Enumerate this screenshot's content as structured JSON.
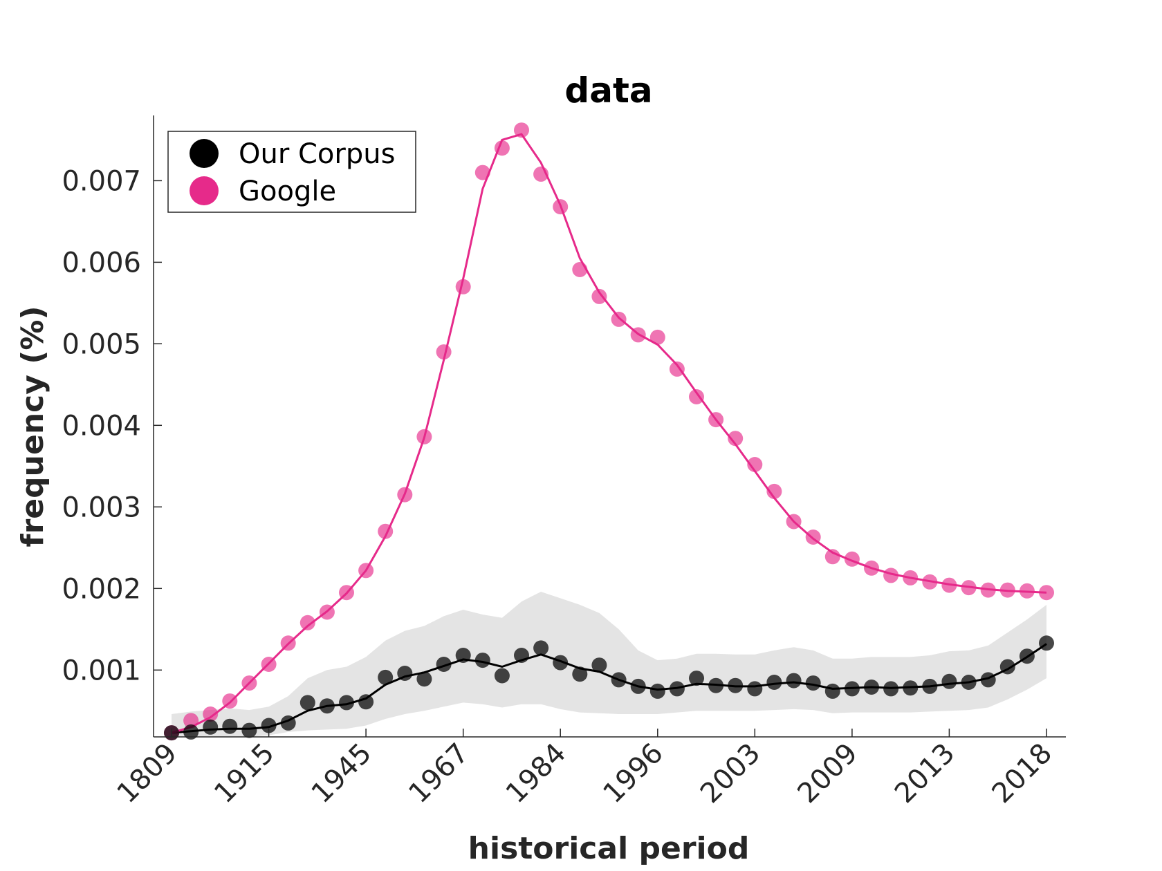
{
  "chart_data": {
    "type": "scatter",
    "title": "data",
    "xlabel": "historical period",
    "ylabel": "frequency (%)",
    "categories": [
      "1809",
      "1915",
      "1945",
      "1967",
      "1984",
      "1996",
      "2003",
      "2009",
      "2013",
      "2018"
    ],
    "ylim": [
      0.00018,
      0.0078
    ],
    "yticks": [
      0.001,
      0.002,
      0.003,
      0.004,
      0.005,
      0.006,
      0.007
    ],
    "ytick_labels": [
      "0.001",
      "0.002",
      "0.003",
      "0.004",
      "0.005",
      "0.006",
      "0.007"
    ],
    "grid": false,
    "legend_position": "top-left",
    "series": [
      {
        "name": "Our Corpus",
        "color": "#000000",
        "points": [
          0.00023,
          0.00024,
          0.0003,
          0.00031,
          0.00026,
          0.00032,
          0.00035,
          0.0006,
          0.00056,
          0.0006,
          0.00061,
          0.00091,
          0.00096,
          0.00089,
          0.00107,
          0.00118,
          0.00112,
          0.00093,
          0.00118,
          0.00127,
          0.00109,
          0.00095,
          0.00106,
          0.00088,
          0.0008,
          0.00074,
          0.00077,
          0.0009,
          0.00081,
          0.00081,
          0.00077,
          0.00085,
          0.00087,
          0.00084,
          0.00074,
          0.00077,
          0.00079,
          0.00077,
          0.00078,
          0.0008,
          0.00086,
          0.00085,
          0.00088,
          0.00104,
          0.00117,
          0.00133
        ],
        "trend": [
          0.00023,
          0.00025,
          0.00027,
          0.00028,
          0.00028,
          0.0003,
          0.00038,
          0.0005,
          0.00056,
          0.00058,
          0.00065,
          0.00082,
          0.00092,
          0.00097,
          0.00105,
          0.00113,
          0.0011,
          0.00104,
          0.00112,
          0.00119,
          0.00111,
          0.00102,
          0.00098,
          0.00088,
          0.0008,
          0.00076,
          0.00078,
          0.00083,
          0.00082,
          0.0008,
          0.0008,
          0.00083,
          0.00085,
          0.00082,
          0.00077,
          0.00078,
          0.00079,
          0.00078,
          0.00079,
          0.0008,
          0.00083,
          0.00085,
          0.0009,
          0.00101,
          0.00116,
          0.00132
        ],
        "band_upper": [
          0.00046,
          0.00049,
          0.00051,
          0.00053,
          0.00051,
          0.00055,
          0.00068,
          0.0009,
          0.001,
          0.00104,
          0.00116,
          0.00136,
          0.00148,
          0.00154,
          0.00166,
          0.00174,
          0.00168,
          0.00164,
          0.00184,
          0.00196,
          0.00188,
          0.0018,
          0.0017,
          0.0015,
          0.00124,
          0.00112,
          0.00114,
          0.0012,
          0.0012,
          0.00119,
          0.00119,
          0.00124,
          0.00128,
          0.00124,
          0.00114,
          0.00114,
          0.00116,
          0.00116,
          0.00116,
          0.00118,
          0.00123,
          0.00124,
          0.0013,
          0.00146,
          0.00162,
          0.0018
        ],
        "band_lower": [
          0.00018,
          0.00018,
          0.00018,
          0.00018,
          0.00018,
          0.0002,
          0.00024,
          0.00026,
          0.00027,
          0.00028,
          0.00032,
          0.0004,
          0.00046,
          0.0005,
          0.00055,
          0.0006,
          0.00058,
          0.00054,
          0.00058,
          0.00058,
          0.00052,
          0.00048,
          0.00047,
          0.00046,
          0.00046,
          0.00046,
          0.00048,
          0.0005,
          0.0005,
          0.0005,
          0.0005,
          0.00051,
          0.00052,
          0.00051,
          0.00047,
          0.00048,
          0.00048,
          0.00048,
          0.00048,
          0.00049,
          0.0005,
          0.00051,
          0.00054,
          0.00064,
          0.00076,
          0.0009
        ]
      },
      {
        "name": "Google",
        "color": "#e62a8a",
        "points": [
          0.00023,
          0.00038,
          0.00046,
          0.00062,
          0.00084,
          0.00107,
          0.00133,
          0.00158,
          0.00171,
          0.00195,
          0.00222,
          0.0027,
          0.00315,
          0.00386,
          0.0049,
          0.0057,
          0.0071,
          0.0074,
          0.00762,
          0.00708,
          0.00668,
          0.00591,
          0.00558,
          0.0053,
          0.00511,
          0.00508,
          0.00469,
          0.00435,
          0.00407,
          0.00384,
          0.00352,
          0.00319,
          0.00282,
          0.00263,
          0.00239,
          0.00236,
          0.00225,
          0.00216,
          0.00213,
          0.00208,
          0.00204,
          0.00201,
          0.00198,
          0.00198,
          0.00197,
          0.00195
        ],
        "trend": [
          0.00023,
          0.0003,
          0.00042,
          0.0006,
          0.00084,
          0.00108,
          0.00132,
          0.00154,
          0.00172,
          0.00194,
          0.00222,
          0.00264,
          0.00316,
          0.00385,
          0.0048,
          0.0058,
          0.0069,
          0.0075,
          0.00757,
          0.00722,
          0.0067,
          0.00605,
          0.00563,
          0.00532,
          0.00512,
          0.00499,
          0.00474,
          0.0044,
          0.00407,
          0.00377,
          0.00344,
          0.00311,
          0.00282,
          0.00261,
          0.00244,
          0.00234,
          0.00225,
          0.00218,
          0.00213,
          0.00209,
          0.00205,
          0.00202,
          0.00199,
          0.00197,
          0.00196,
          0.00195
        ]
      }
    ]
  }
}
